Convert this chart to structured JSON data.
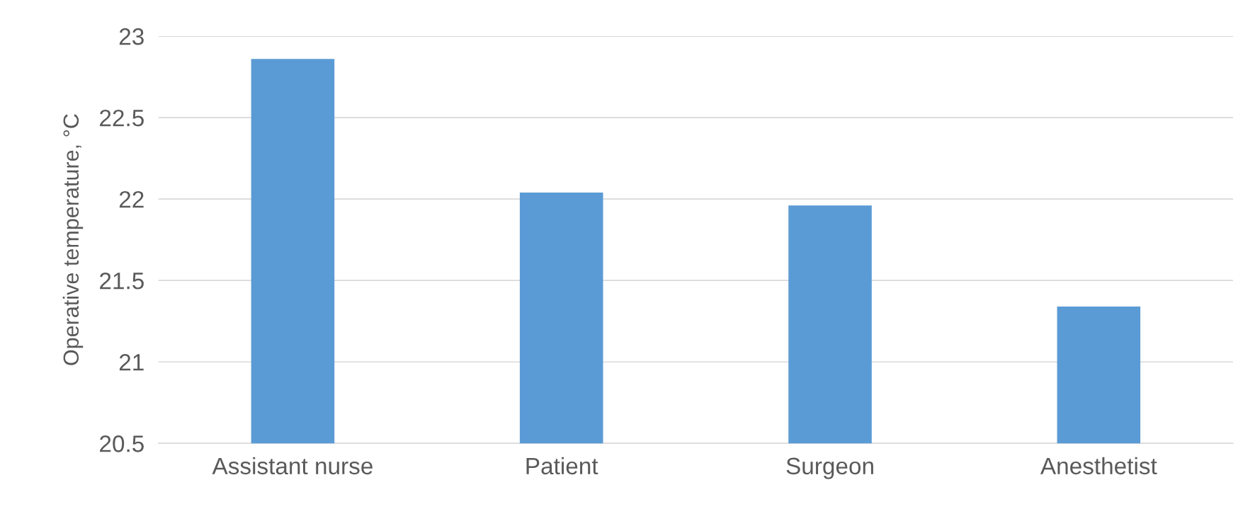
{
  "chart_data": {
    "type": "bar",
    "ylabel": "Operative temperature, °C",
    "categories": [
      "Assistant nurse",
      "Patient",
      "Surgeon",
      "Anesthetist"
    ],
    "values": [
      22.86,
      22.04,
      21.96,
      21.34
    ],
    "color": "#5b9bd5",
    "ylim": [
      20.5,
      23
    ],
    "yticks": [
      20.5,
      21,
      21.5,
      22,
      22.5,
      23
    ],
    "grid": "y",
    "legend": false
  }
}
